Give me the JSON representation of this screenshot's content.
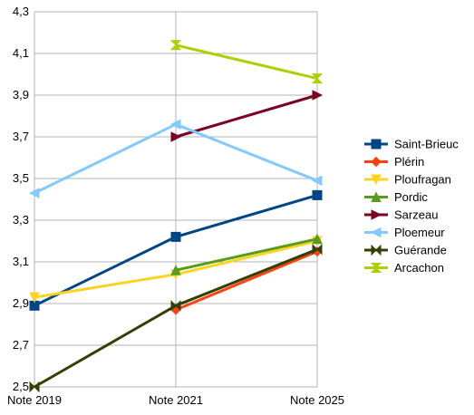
{
  "chart_data": {
    "type": "line",
    "title": "",
    "xlabel": "",
    "ylabel": "",
    "categories": [
      "Note 2019",
      "Note 2021",
      "Note 2025"
    ],
    "ylim": [
      2.5,
      4.3
    ],
    "yticks": [
      2.5,
      2.7,
      2.9,
      3.1,
      3.3,
      3.5,
      3.7,
      3.9,
      4.1,
      4.3
    ],
    "ytick_labels": [
      "2,5",
      "2,7",
      "2,9",
      "3,1",
      "3,3",
      "3,5",
      "3,7",
      "3,9",
      "4,1",
      "4,3"
    ],
    "grid": "horizontal",
    "legend": "right",
    "series": [
      {
        "name": "Saint-Brieuc",
        "values": [
          2.89,
          3.22,
          3.42
        ],
        "color": "#004586",
        "marker": "square"
      },
      {
        "name": "Plérin",
        "values": [
          null,
          2.87,
          3.15
        ],
        "color": "#ff420e",
        "marker": "diamond"
      },
      {
        "name": "Ploufragan",
        "values": [
          2.93,
          3.04,
          3.2
        ],
        "color": "#ffd320",
        "marker": "triangle-down"
      },
      {
        "name": "Pordic",
        "values": [
          null,
          3.06,
          3.21
        ],
        "color": "#579d1c",
        "marker": "triangle-up"
      },
      {
        "name": "Sarzeau",
        "values": [
          null,
          3.7,
          3.9
        ],
        "color": "#7e0021",
        "marker": "triangle-right"
      },
      {
        "name": "Ploemeur",
        "values": [
          3.43,
          3.76,
          3.49
        ],
        "color": "#83caff",
        "marker": "triangle-left"
      },
      {
        "name": "Guérande",
        "values": [
          2.5,
          2.89,
          3.16
        ],
        "color": "#314004",
        "marker": "bowtie"
      },
      {
        "name": "Arcachon",
        "values": [
          null,
          4.14,
          3.98
        ],
        "color": "#aecf00",
        "marker": "hourglass"
      }
    ]
  }
}
